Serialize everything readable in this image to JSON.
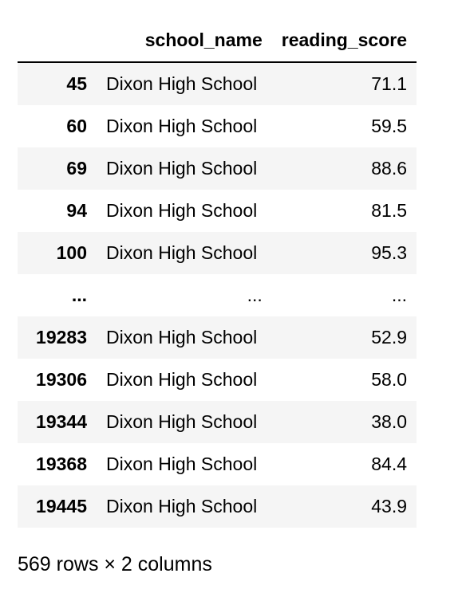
{
  "table": {
    "columns": {
      "index": "",
      "school_name": "school_name",
      "reading_score": "reading_score"
    },
    "rows": [
      {
        "index": "45",
        "school_name": "Dixon High School",
        "reading_score": "71.1"
      },
      {
        "index": "60",
        "school_name": "Dixon High School",
        "reading_score": "59.5"
      },
      {
        "index": "69",
        "school_name": "Dixon High School",
        "reading_score": "88.6"
      },
      {
        "index": "94",
        "school_name": "Dixon High School",
        "reading_score": "81.5"
      },
      {
        "index": "100",
        "school_name": "Dixon High School",
        "reading_score": "95.3"
      },
      {
        "index": "...",
        "school_name": "...",
        "reading_score": "..."
      },
      {
        "index": "19283",
        "school_name": "Dixon High School",
        "reading_score": "52.9"
      },
      {
        "index": "19306",
        "school_name": "Dixon High School",
        "reading_score": "58.0"
      },
      {
        "index": "19344",
        "school_name": "Dixon High School",
        "reading_score": "38.0"
      },
      {
        "index": "19368",
        "school_name": "Dixon High School",
        "reading_score": "84.4"
      },
      {
        "index": "19445",
        "school_name": "Dixon High School",
        "reading_score": "43.9"
      }
    ]
  },
  "shape_note": "569 rows × 2 columns"
}
